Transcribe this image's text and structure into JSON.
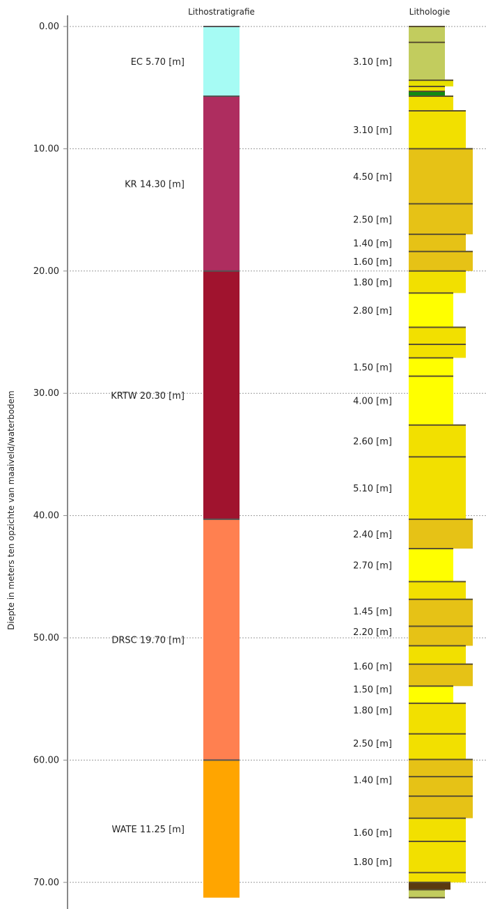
{
  "chart_data": {
    "type": "table",
    "ylabel": "Diepte in meters ten opzichte van maaiveld/waterbodem",
    "ylim": [
      0,
      72
    ],
    "ticks": [
      "0.00",
      "10.00",
      "20.00",
      "30.00",
      "40.00",
      "50.00",
      "60.00",
      "70.00"
    ],
    "tick_values": [
      0,
      10,
      20,
      30,
      40,
      50,
      60,
      70
    ],
    "columns": {
      "lithostratigrafie": "Lithostratigrafie",
      "lithologie": "Lithologie"
    },
    "units": [
      {
        "code": "EC",
        "label": "EC 5.70 [m]",
        "top": 0.0,
        "bottom": 5.7,
        "color": "#a6fbf4"
      },
      {
        "code": "KR",
        "label": "KR 14.30 [m]",
        "top": 5.7,
        "bottom": 20.0,
        "color": "#ae2d5f"
      },
      {
        "code": "KRTW",
        "label": "KRTW 20.30 [m]",
        "top": 20.0,
        "bottom": 40.3,
        "color": "#a0132e"
      },
      {
        "code": "DRSC",
        "label": "DRSC 19.70 [m]",
        "top": 40.3,
        "bottom": 60.0,
        "color": "#ff8050"
      },
      {
        "code": "WATE",
        "label": "WATE 11.25 [m]",
        "top": 60.0,
        "bottom": 71.25,
        "color": "#ffa500"
      }
    ],
    "layers": [
      {
        "top": 0.0,
        "bottom": 1.3,
        "color": "#c2cc5e",
        "width": 0.52
      },
      {
        "top": 1.3,
        "bottom": 4.4,
        "color": "#c2cc5e",
        "width": 0.52
      },
      {
        "top": 4.4,
        "bottom": 4.9,
        "color": "#e8e000",
        "width": 0.64
      },
      {
        "top": 4.9,
        "bottom": 5.3,
        "color": "#f2e000",
        "width": 0.52
      },
      {
        "top": 5.3,
        "bottom": 5.7,
        "color": "#138a13",
        "width": 0.52
      },
      {
        "top": 5.7,
        "bottom": 6.9,
        "color": "#f2e000",
        "width": 0.64
      },
      {
        "top": 6.9,
        "bottom": 10.0,
        "color": "#f2e000",
        "width": 0.82
      },
      {
        "top": 10.0,
        "bottom": 14.5,
        "color": "#e6c216",
        "width": 0.92
      },
      {
        "top": 14.5,
        "bottom": 17.0,
        "color": "#e6c216",
        "width": 0.92
      },
      {
        "top": 17.0,
        "bottom": 18.4,
        "color": "#e6c216",
        "width": 0.82
      },
      {
        "top": 18.4,
        "bottom": 20.0,
        "color": "#e6c216",
        "width": 0.92
      },
      {
        "top": 20.0,
        "bottom": 21.8,
        "color": "#f2e000",
        "width": 0.82
      },
      {
        "top": 21.8,
        "bottom": 24.6,
        "color": "#ffff00",
        "width": 0.64
      },
      {
        "top": 24.6,
        "bottom": 26.0,
        "color": "#f2e000",
        "width": 0.82
      },
      {
        "top": 26.0,
        "bottom": 27.1,
        "color": "#f2e000",
        "width": 0.82
      },
      {
        "top": 27.1,
        "bottom": 28.6,
        "color": "#ffff00",
        "width": 0.64
      },
      {
        "top": 28.6,
        "bottom": 32.6,
        "color": "#ffff00",
        "width": 0.64
      },
      {
        "top": 32.6,
        "bottom": 35.2,
        "color": "#f2e000",
        "width": 0.82
      },
      {
        "top": 35.2,
        "bottom": 40.3,
        "color": "#f2e000",
        "width": 0.82
      },
      {
        "top": 40.3,
        "bottom": 42.7,
        "color": "#e6c216",
        "width": 0.92
      },
      {
        "top": 42.7,
        "bottom": 45.4,
        "color": "#ffff00",
        "width": 0.64
      },
      {
        "top": 45.4,
        "bottom": 46.85,
        "color": "#f2e000",
        "width": 0.82
      },
      {
        "top": 46.85,
        "bottom": 49.05,
        "color": "#e6c216",
        "width": 0.92
      },
      {
        "top": 49.05,
        "bottom": 50.65,
        "color": "#e6c216",
        "width": 0.92
      },
      {
        "top": 50.65,
        "bottom": 52.15,
        "color": "#f2e000",
        "width": 0.82
      },
      {
        "top": 52.15,
        "bottom": 53.95,
        "color": "#e6c216",
        "width": 0.92
      },
      {
        "top": 53.95,
        "bottom": 55.35,
        "color": "#ffff00",
        "width": 0.64
      },
      {
        "top": 55.35,
        "bottom": 57.85,
        "color": "#f2e000",
        "width": 0.82
      },
      {
        "top": 57.85,
        "bottom": 59.95,
        "color": "#f2e000",
        "width": 0.82
      },
      {
        "top": 59.95,
        "bottom": 61.35,
        "color": "#e6c216",
        "width": 0.92
      },
      {
        "top": 61.35,
        "bottom": 62.95,
        "color": "#e6c216",
        "width": 0.92
      },
      {
        "top": 62.95,
        "bottom": 64.75,
        "color": "#e6c216",
        "width": 0.92
      },
      {
        "top": 64.75,
        "bottom": 66.65,
        "color": "#f2e000",
        "width": 0.82
      },
      {
        "top": 66.65,
        "bottom": 69.2,
        "color": "#f2e000",
        "width": 0.82
      },
      {
        "top": 69.2,
        "bottom": 70.0,
        "color": "#f2e000",
        "width": 0.82
      },
      {
        "top": 70.0,
        "bottom": 70.6,
        "color": "#5a3a10",
        "width": 0.6
      },
      {
        "top": 70.6,
        "bottom": 71.25,
        "color": "#c2cc5e",
        "width": 0.52
      }
    ],
    "thickness_labels": [
      {
        "label": "3.10 [m]",
        "depth": 2.85
      },
      {
        "label": "3.10 [m]",
        "depth": 8.45
      },
      {
        "label": "4.50 [m]",
        "depth": 12.25
      },
      {
        "label": "2.50 [m]",
        "depth": 15.75
      },
      {
        "label": "1.40 [m]",
        "depth": 17.7
      },
      {
        "label": "1.60 [m]",
        "depth": 19.2
      },
      {
        "label": "1.80 [m]",
        "depth": 20.9
      },
      {
        "label": "2.80 [m]",
        "depth": 23.2
      },
      {
        "label": "1.50 [m]",
        "depth": 27.85
      },
      {
        "label": "4.00 [m]",
        "depth": 30.6
      },
      {
        "label": "2.60 [m]",
        "depth": 33.9
      },
      {
        "label": "5.10 [m]",
        "depth": 37.75
      },
      {
        "label": "2.40 [m]",
        "depth": 41.5
      },
      {
        "label": "2.70 [m]",
        "depth": 44.05
      },
      {
        "label": "1.45 [m]",
        "depth": 47.8
      },
      {
        "label": "2.20 [m]",
        "depth": 49.5
      },
      {
        "label": "1.60 [m]",
        "depth": 52.3
      },
      {
        "label": "1.50 [m]",
        "depth": 54.2
      },
      {
        "label": "1.80 [m]",
        "depth": 55.9
      },
      {
        "label": "2.50 [m]",
        "depth": 58.6
      },
      {
        "label": "1.40 [m]",
        "depth": 61.6
      },
      {
        "label": "1.60 [m]",
        "depth": 65.9
      },
      {
        "label": "1.80 [m]",
        "depth": 68.3
      }
    ]
  }
}
